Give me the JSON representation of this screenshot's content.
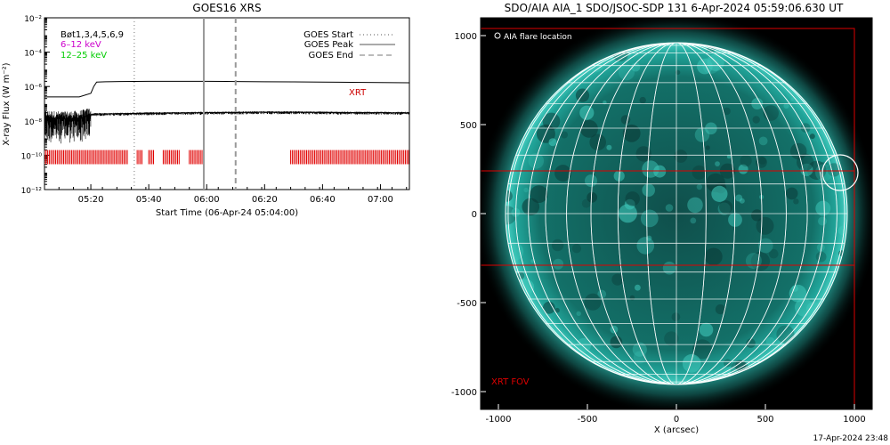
{
  "left_title": "GOES16 XRS",
  "right_title": "SDO/AIA AIA_1 SDO/JSOC-SDP 131  6-Apr-2024 05:59:06.630 UT",
  "timestamp": "17-Apr-2024 23:48",
  "colors": {
    "flux_line": "#000000",
    "xrt_bars": "#e00000",
    "low_channel_label": "#cc00cc",
    "high_channel_label": "#00cc00",
    "solar_disk": "#1ba39a",
    "fov_box": "#dd0000",
    "grid_lines": "#ffffff"
  },
  "chart_data": [
    {
      "type": "line",
      "title": "GOES16 XRS",
      "xlabel": "Start Time (06-Apr-24 05:04:00)",
      "ylabel": "X-ray Flux (W m⁻²)",
      "y_scale": "log",
      "ylim": [
        1e-12,
        0.01
      ],
      "xlim": [
        "05:04",
        "07:10"
      ],
      "x_ticks": [
        "05:20",
        "05:40",
        "06:00",
        "06:20",
        "06:40",
        "07:00"
      ],
      "y_tick_labels": [
        "10⁻¹²",
        "10⁻¹⁰",
        "10⁻⁸",
        "10⁻⁶",
        "10⁻⁴",
        "10⁻²"
      ],
      "label_lines": [
        "Bøt1,3,4,5,6,9",
        "6–12 keV",
        "12–25 keV"
      ],
      "legend": [
        {
          "label": "GOES Start",
          "style": "dotted"
        },
        {
          "label": "GOES Peak",
          "style": "solid"
        },
        {
          "label": "GOES End",
          "style": "dashed"
        }
      ],
      "legend_position": "top-right",
      "annotation": "XRT",
      "vertical_markers": {
        "start": "05:35",
        "peak": "05:59",
        "end": "06:10"
      },
      "series": [
        {
          "x": [
            "05:04",
            "05:10",
            "05:16",
            "05:20",
            "05:21",
            "05:22",
            "05:25",
            "05:30",
            "05:40",
            "05:50",
            "06:00",
            "06:10",
            "06:20",
            "06:30",
            "06:40",
            "06:50",
            "07:00",
            "07:10"
          ],
          "y": [
            2.5e-07,
            2.5e-07,
            2.5e-07,
            4e-07,
            1e-06,
            1.8e-06,
            1.9e-06,
            1.95e-06,
            2e-06,
            2e-06,
            2e-06,
            1.95e-06,
            1.9e-06,
            1.85e-06,
            1.8e-06,
            1.75e-06,
            1.7e-06,
            1.65e-06
          ]
        },
        {
          "x": [
            "05:04",
            "05:10",
            "05:16",
            "05:19",
            "05:21",
            "05:30",
            "05:40",
            "05:50",
            "06:00",
            "06:10",
            "06:20",
            "06:30",
            "06:40",
            "06:50",
            "07:00",
            "07:10"
          ],
          "y": [
            1.5e-08,
            1.3e-08,
            1.4e-08,
            2e-08,
            2.5e-08,
            2.6e-08,
            2.8e-08,
            2.9e-08,
            3e-08,
            3.1e-08,
            3.2e-08,
            3.2e-08,
            3.1e-08,
            3e-08,
            3e-08,
            2.9e-08
          ]
        }
      ],
      "xrt_observation_intervals": [
        [
          "05:04",
          "05:33"
        ],
        [
          "05:36",
          "05:38"
        ],
        [
          "05:40",
          "05:42"
        ],
        [
          "05:45",
          "05:51"
        ],
        [
          "05:54",
          "05:59"
        ],
        [
          "06:29",
          "07:10"
        ]
      ]
    },
    {
      "type": "scatter",
      "title": "SDO/AIA AIA_1 SDO/JSOC-SDP 131  6-Apr-2024 05:59:06.630 UT",
      "xlabel": "X (arcsec)",
      "ylabel": "",
      "xlim": [
        -1100,
        1100
      ],
      "ylim": [
        -1100,
        1100
      ],
      "x_ticks": [
        -1000,
        -500,
        0,
        500,
        1000
      ],
      "y_ticks": [
        -1000,
        -500,
        0,
        500,
        1000
      ],
      "solar_radius": 960,
      "flare_location": {
        "x": 920,
        "y": 230,
        "label": "AIA flare location"
      },
      "fov_label": "XRT FOV",
      "fov_outer": {
        "x": [
          -1100,
          1000
        ],
        "y": [
          -1100,
          1040
        ]
      },
      "fov_band": {
        "y": [
          -290,
          240
        ]
      }
    }
  ]
}
